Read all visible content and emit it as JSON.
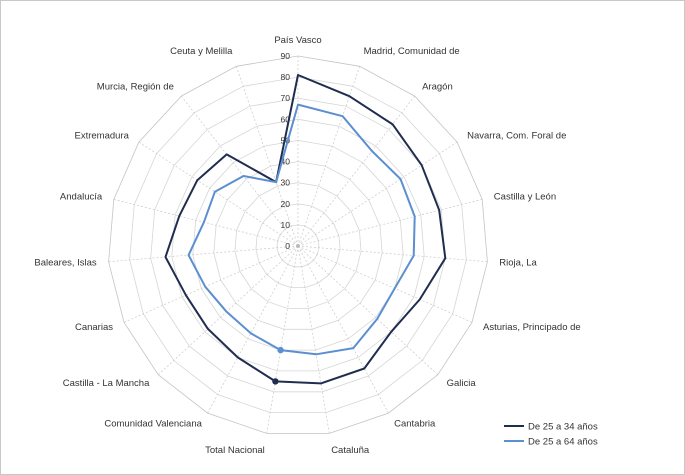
{
  "chart_data": {
    "type": "radar",
    "categories": [
      "País Vasco",
      "Madrid, Comunidad de",
      "Aragón",
      "Navarra, Com. Foral de",
      "Castilla y León",
      "Rioja, La",
      "Asturias, Principado de",
      "Galicia",
      "Cantabria",
      "Cataluña",
      "Total Nacional",
      "Comunidad Valenciana",
      "Castilla - La Mancha",
      "Canarias",
      "Baleares, Islas",
      "Andalucía",
      "Extremadura",
      "Murcia, Región de",
      "Ceuta y Melilla"
    ],
    "series": [
      {
        "name": "De 25 a 34 años",
        "color": "#1f2d4f",
        "values": [
          81,
          75,
          73,
          70,
          69,
          70,
          63,
          60,
          66,
          66,
          65,
          60,
          58,
          58,
          63,
          58,
          57,
          55,
          32
        ]
      },
      {
        "name": "De 25 a 64 años",
        "color": "#5b8fd0",
        "values": [
          67,
          65,
          57,
          58,
          57,
          55,
          50,
          51,
          55,
          52,
          50,
          47,
          46,
          48,
          52,
          46,
          47,
          42,
          32
        ]
      }
    ],
    "highlight_category": "Total Nacional",
    "rlim": [
      0,
      90
    ],
    "ticks": [
      0,
      10,
      20,
      30,
      40,
      50,
      60,
      70,
      80,
      90
    ],
    "grid": true,
    "legend": "bottom-right"
  }
}
